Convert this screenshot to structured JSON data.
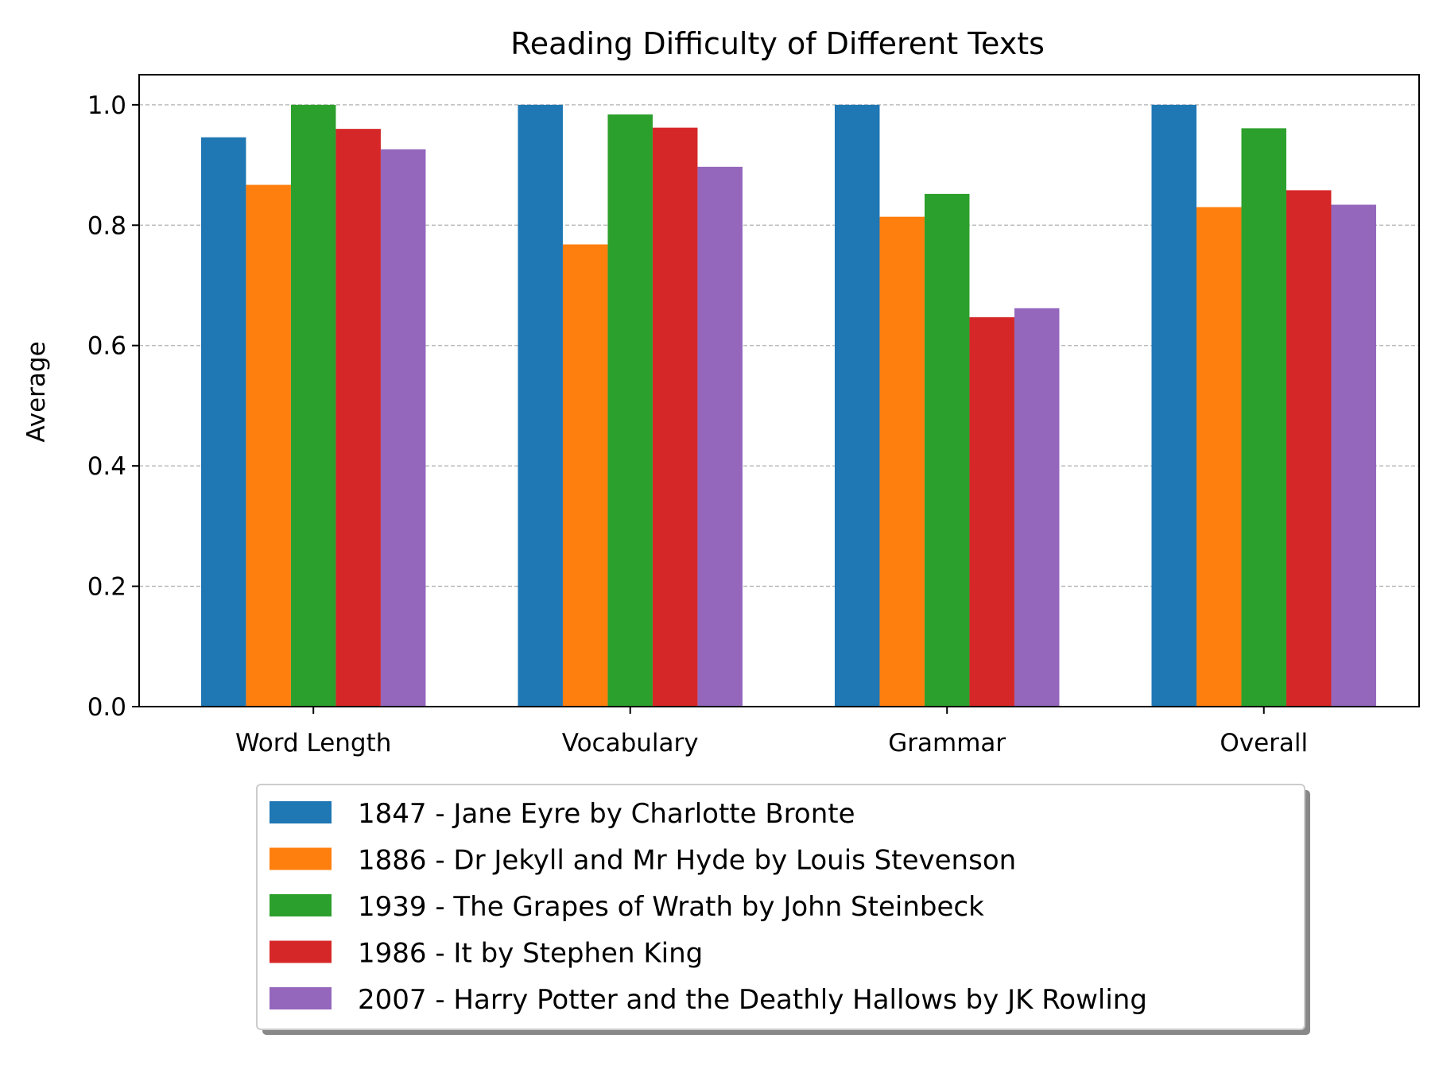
{
  "chart_data": {
    "type": "bar",
    "title": "Reading Difficulty of Different Texts",
    "xlabel": "",
    "ylabel": "Average",
    "ylim": [
      0,
      1.05
    ],
    "yticks": [
      "0.0",
      "0.2",
      "0.4",
      "0.6",
      "0.8",
      "1.0"
    ],
    "grid": "horizontal dashed",
    "legend_position": "below chart",
    "categories": [
      "Word Length",
      "Vocabulary",
      "Grammar",
      "Overall"
    ],
    "series": [
      {
        "name": "1847 - Jane Eyre by Charlotte Bronte",
        "color": "#1f77b4",
        "values": [
          0.946,
          1.0,
          1.0,
          1.0
        ]
      },
      {
        "name": "1886 - Dr Jekyll and Mr Hyde by Louis Stevenson",
        "color": "#ff7f0e",
        "values": [
          0.867,
          0.768,
          0.814,
          0.83
        ]
      },
      {
        "name": "1939 - The Grapes of Wrath by John Steinbeck",
        "color": "#2ca02c",
        "values": [
          1.0,
          0.984,
          0.852,
          0.961
        ]
      },
      {
        "name": "1986 - It by Stephen King",
        "color": "#d62728",
        "values": [
          0.96,
          0.962,
          0.647,
          0.858
        ]
      },
      {
        "name": "2007 - Harry Potter and the Deathly Hallows by JK Rowling",
        "color": "#9467bd",
        "values": [
          0.926,
          0.897,
          0.662,
          0.834
        ]
      }
    ]
  }
}
